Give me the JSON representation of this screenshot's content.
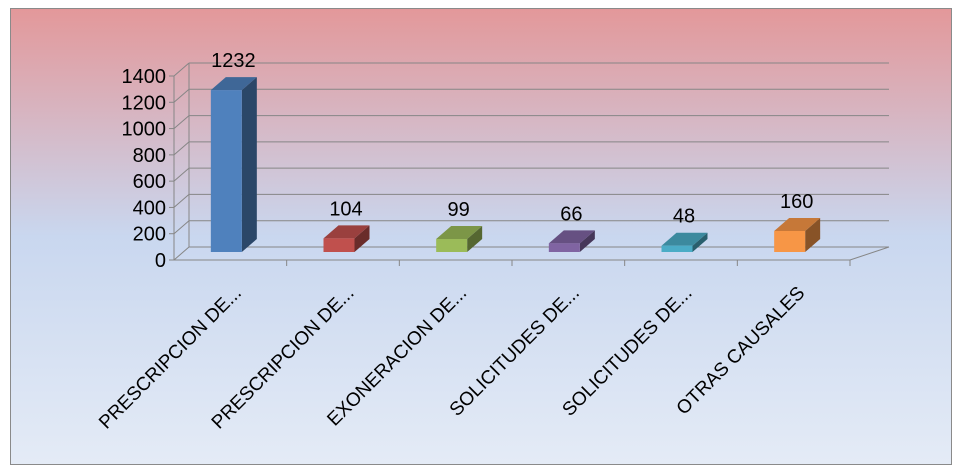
{
  "chart_data": {
    "type": "bar",
    "style": "3d-column",
    "categories": [
      "PRESCRIPCION DE...",
      "PRESCRIPCION DE...",
      "EXONERACION DE...",
      "SOLICITUDES DE...",
      "SOLICITUDES DE...",
      "OTRAS CAUSALES"
    ],
    "values": [
      1232,
      104,
      99,
      66,
      48,
      160
    ],
    "data_labels": [
      "1232",
      "104",
      "99",
      "66",
      "48",
      "160"
    ],
    "colors": [
      "#4F81BD",
      "#C0504D",
      "#9BBB59",
      "#8064A2",
      "#4BACC6",
      "#F79646"
    ],
    "ylim": [
      0,
      1400
    ],
    "yticks": [
      0,
      200,
      400,
      600,
      800,
      1000,
      1200,
      1400
    ],
    "ytick_labels": [
      "0",
      "200",
      "400",
      "600",
      "800",
      "1000",
      "1200",
      "1400"
    ],
    "grid": true,
    "legend": "none",
    "background_gradient": [
      "#E3989A",
      "#C9D7EF",
      "#E4EBF6"
    ]
  }
}
